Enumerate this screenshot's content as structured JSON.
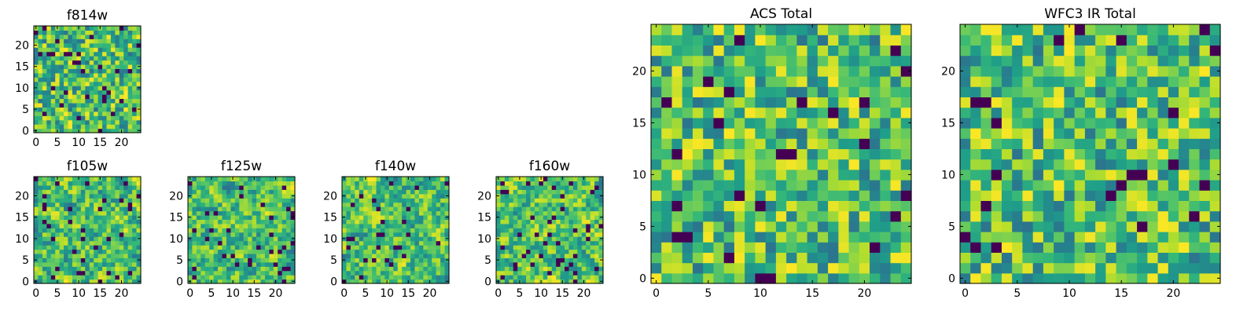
{
  "chart_data": [
    {
      "type": "heatmap",
      "title": "f814w",
      "grid": [
        25,
        25
      ],
      "xticks": [
        0,
        5,
        10,
        15,
        20
      ],
      "yticks": [
        0,
        5,
        10,
        15,
        20
      ],
      "xlim": [
        -0.5,
        24.5
      ],
      "ylim": [
        -0.5,
        24.5
      ],
      "colormap": "viridis",
      "seed": 11,
      "smooth": 0,
      "dark_fraction": 0.05
    },
    {
      "type": "heatmap",
      "title": "f105w",
      "grid": [
        25,
        25
      ],
      "xticks": [
        0,
        5,
        10,
        15,
        20
      ],
      "yticks": [
        0,
        5,
        10,
        15,
        20
      ],
      "xlim": [
        -0.5,
        24.5
      ],
      "ylim": [
        -0.5,
        24.5
      ],
      "colormap": "viridis",
      "seed": 23,
      "smooth": 1,
      "dark_fraction": 0.05
    },
    {
      "type": "heatmap",
      "title": "f125w",
      "grid": [
        25,
        25
      ],
      "xticks": [
        0,
        5,
        10,
        15,
        20
      ],
      "yticks": [
        0,
        5,
        10,
        15,
        20
      ],
      "xlim": [
        -0.5,
        24.5
      ],
      "ylim": [
        -0.5,
        24.5
      ],
      "colormap": "viridis",
      "seed": 37,
      "smooth": 1,
      "dark_fraction": 0.05
    },
    {
      "type": "heatmap",
      "title": "f140w",
      "grid": [
        25,
        25
      ],
      "xticks": [
        0,
        5,
        10,
        15,
        20
      ],
      "yticks": [
        0,
        5,
        10,
        15,
        20
      ],
      "xlim": [
        -0.5,
        24.5
      ],
      "ylim": [
        -0.5,
        24.5
      ],
      "colormap": "viridis",
      "seed": 41,
      "smooth": 1,
      "dark_fraction": 0.06
    },
    {
      "type": "heatmap",
      "title": "f160w",
      "grid": [
        25,
        25
      ],
      "xticks": [
        0,
        5,
        10,
        15,
        20
      ],
      "yticks": [
        0,
        5,
        10,
        15,
        20
      ],
      "xlim": [
        -0.5,
        24.5
      ],
      "ylim": [
        -0.5,
        24.5
      ],
      "colormap": "viridis",
      "seed": 53,
      "smooth": 1,
      "dark_fraction": 0.06
    },
    {
      "type": "heatmap",
      "title": "ACS Total",
      "grid": [
        25,
        25
      ],
      "xticks": [
        0,
        5,
        10,
        15,
        20
      ],
      "yticks": [
        0,
        5,
        10,
        15,
        20
      ],
      "xlim": [
        -0.5,
        24.5
      ],
      "ylim": [
        -0.5,
        24.5
      ],
      "colormap": "viridis",
      "seed": 67,
      "smooth": 0,
      "dark_fraction": 0.03
    },
    {
      "type": "heatmap",
      "title": "WFC3 IR Total",
      "grid": [
        25,
        25
      ],
      "xticks": [
        0,
        5,
        10,
        15,
        20
      ],
      "yticks": [
        0,
        5,
        10,
        15,
        20
      ],
      "xlim": [
        -0.5,
        24.5
      ],
      "ylim": [
        -0.5,
        24.5
      ],
      "colormap": "viridis",
      "seed": 79,
      "smooth": 0,
      "dark_fraction": 0.03
    }
  ]
}
